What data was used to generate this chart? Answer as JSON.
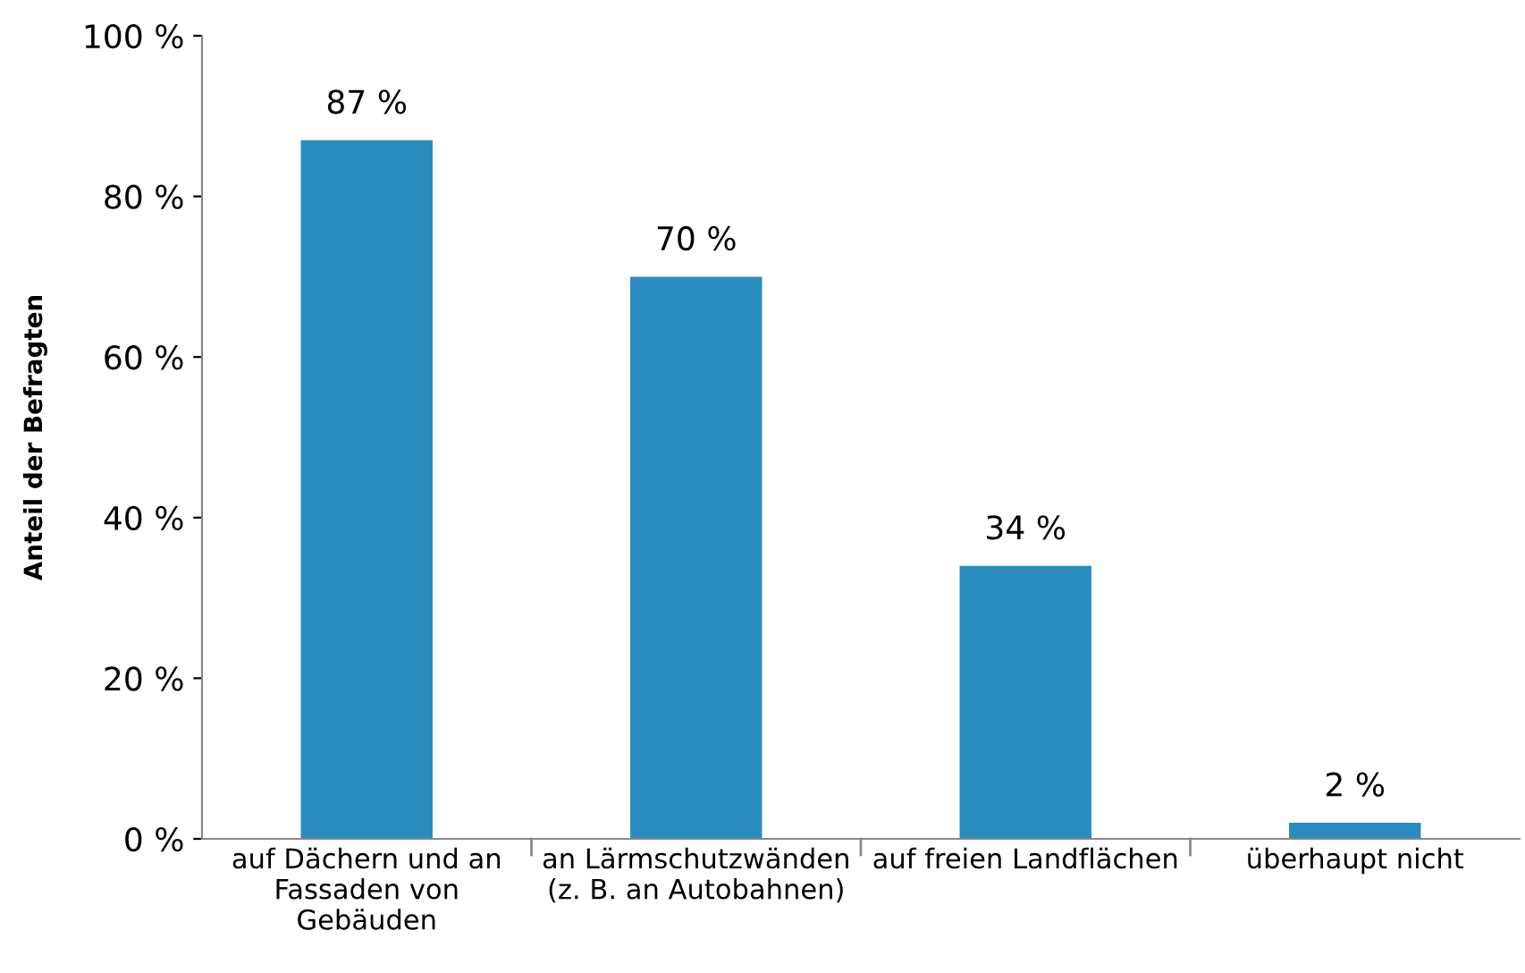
{
  "chart_data": {
    "type": "bar",
    "ylabel": "Anteil der Befragten",
    "categories": [
      "auf Dächern und an\nFassaden von\nGebäuden",
      "an Lärmschutzwänden\n(z. B. an Autobahnen)",
      "auf freien Landflächen",
      "überhaupt nicht"
    ],
    "values": [
      87,
      70,
      34,
      2
    ],
    "value_labels": [
      "87 %",
      "70 %",
      "34 %",
      "2 %"
    ],
    "color": "#2a8bbf",
    "ylim": [
      0,
      100
    ],
    "yticks": [
      {
        "value": 0,
        "label": "0 %"
      },
      {
        "value": 20,
        "label": "20 %"
      },
      {
        "value": 40,
        "label": "40 %"
      },
      {
        "value": 60,
        "label": "60 %"
      },
      {
        "value": 80,
        "label": "80 %"
      },
      {
        "value": 100,
        "label": "100 %"
      }
    ],
    "grid": false,
    "legend": false
  }
}
